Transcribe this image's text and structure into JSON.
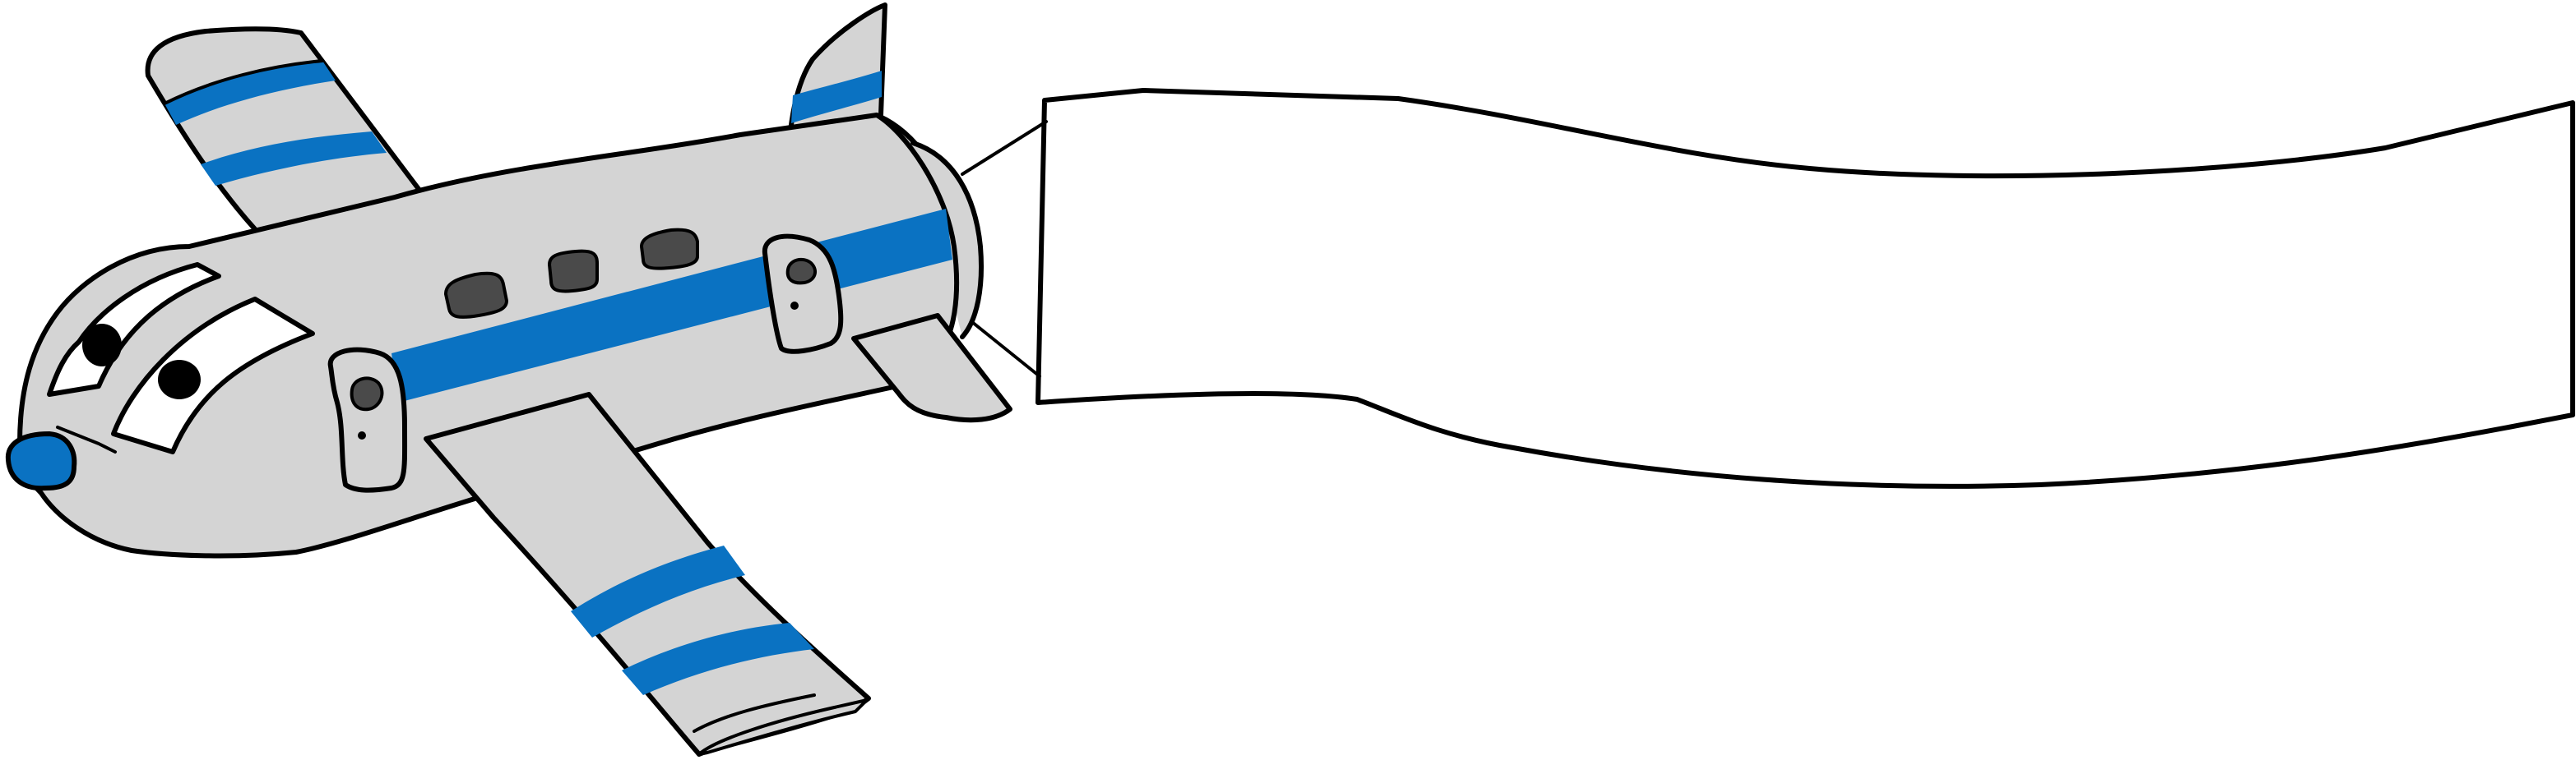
{
  "scene": {
    "subject": "cartoon-airplane-towing-banner",
    "banner_text": ""
  },
  "colors": {
    "background": "#ffffff",
    "outline": "#000000",
    "body": "#d4d4d4",
    "stripe": "#0a72c2",
    "window": "#4a4a4a",
    "banner": "#ffffff",
    "eye": "#000000"
  },
  "icons": {
    "airplane": "airplane-icon",
    "banner": "banner-icon",
    "eye": "eye-icon",
    "nose": "nose-icon",
    "window": "window-icon"
  }
}
